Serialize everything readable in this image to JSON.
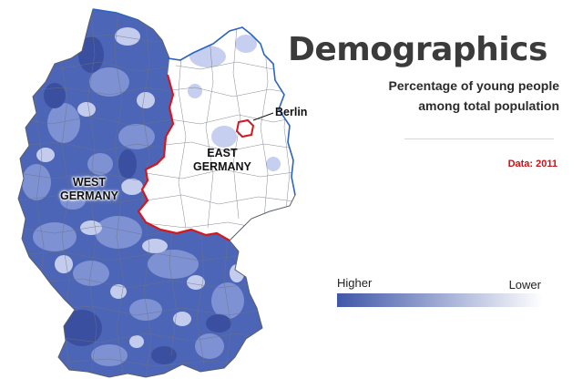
{
  "header": {
    "title": "Demographics",
    "subtitle_line1": "Percentage of young people",
    "subtitle_line2": "among total population",
    "data_note": "Data: 2011"
  },
  "map": {
    "west_label_line1": "WEST",
    "west_label_line2": "GERMANY",
    "east_label_line1": "EAST",
    "east_label_line2": "GERMANY",
    "berlin_label": "Berlin"
  },
  "legend": {
    "high_label": "Higher",
    "low_label": "Lower",
    "high_color": "#3f57a8",
    "low_color": "#ffffff"
  },
  "colors": {
    "border_red": "#d4181f",
    "coast_blue": "#2b64c2",
    "district_lines": "#6f7480",
    "accent_red": "#c4151c",
    "shade_dark": "#3f57a8",
    "shade_mid": "#7a8fd0",
    "shade_light": "#c3cbec"
  }
}
